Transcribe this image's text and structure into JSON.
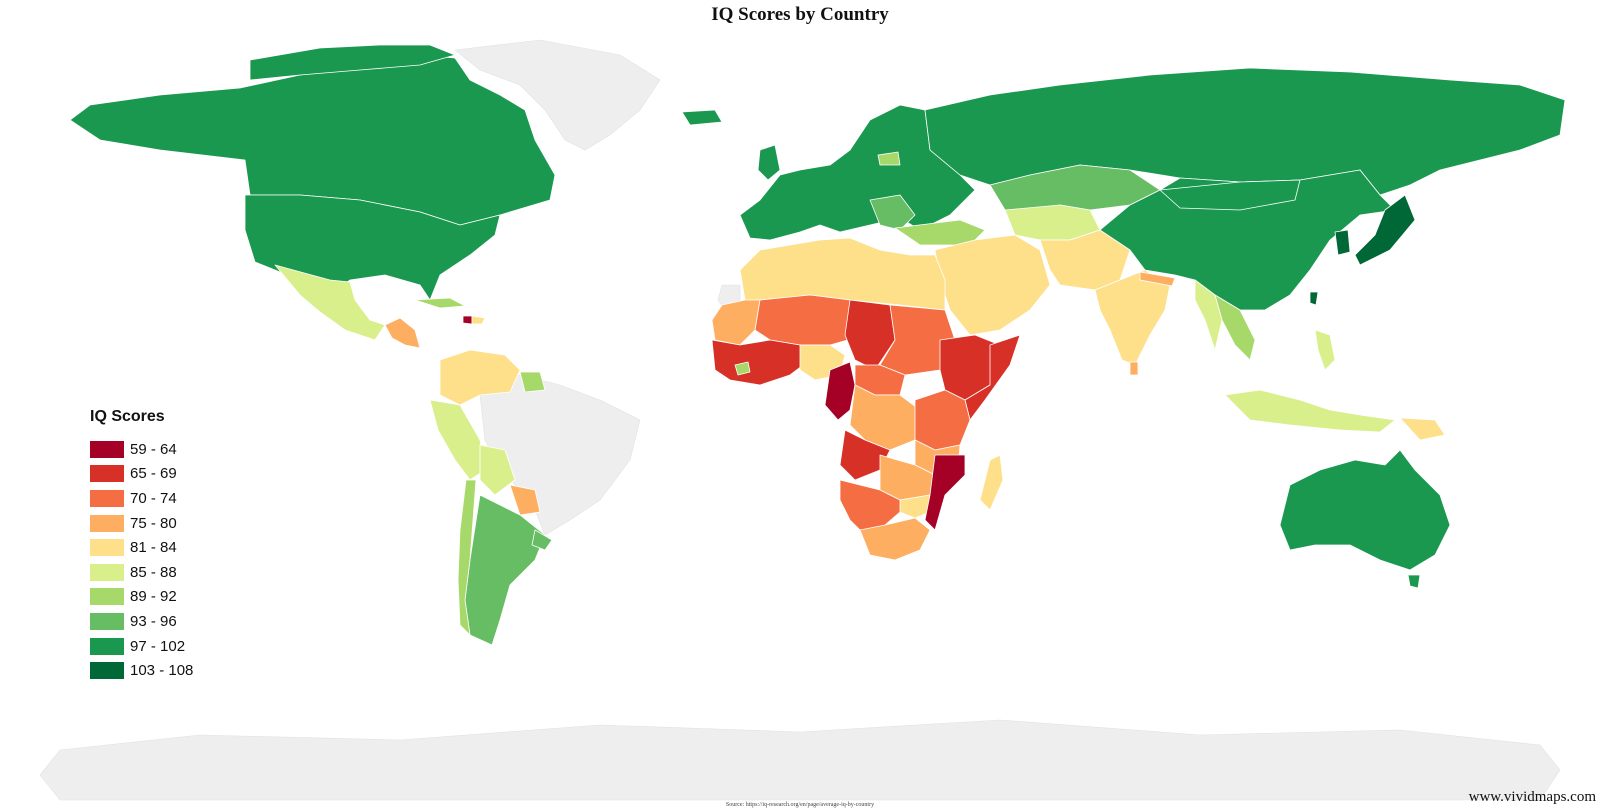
{
  "title": "IQ Scores by Country",
  "legend": {
    "title": "IQ Scores",
    "items": [
      {
        "label": "59 - 64",
        "color": "#a50026"
      },
      {
        "label": "65 - 69",
        "color": "#d73027"
      },
      {
        "label": "70 - 74",
        "color": "#f46d43"
      },
      {
        "label": "75 - 80",
        "color": "#fdae61"
      },
      {
        "label": "81 - 84",
        "color": "#fee08b"
      },
      {
        "label": "85 - 88",
        "color": "#d9ef8b"
      },
      {
        "label": "89 - 92",
        "color": "#a6d96a"
      },
      {
        "label": "93 - 96",
        "color": "#66bd63"
      },
      {
        "label": "97 - 102",
        "color": "#1a9850"
      },
      {
        "label": "103 - 108",
        "color": "#006837"
      }
    ]
  },
  "no_data_color": "#eeeeee",
  "source": "Source: https://iq-research.org/en/page/average-iq-by-country",
  "watermark": "www.vividmaps.com"
}
